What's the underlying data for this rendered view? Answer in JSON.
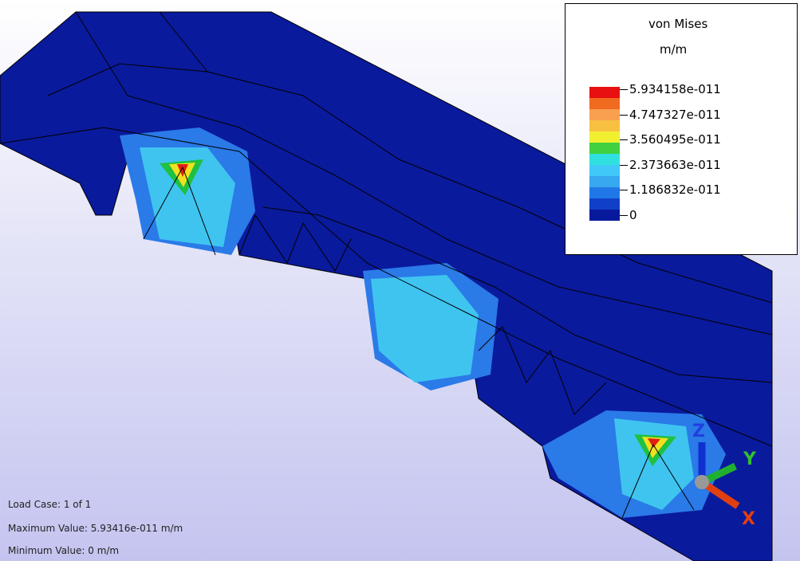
{
  "legend": {
    "title": "von Mises",
    "unit": "m/m",
    "labels": [
      "5.934158e-011",
      "4.747327e-011",
      "3.560495e-011",
      "2.373663e-011",
      "1.186832e-011",
      "0"
    ]
  },
  "info": {
    "load_case": "Load Case:  1 of 1",
    "max_label": "Maximum Value: 5.93416e-011",
    "max_unit": "m/m",
    "min_label": "Minimum Value:",
    "min_value": "0 m/m"
  },
  "triad": {
    "z": "Z",
    "y": "Y",
    "x": "X"
  }
}
